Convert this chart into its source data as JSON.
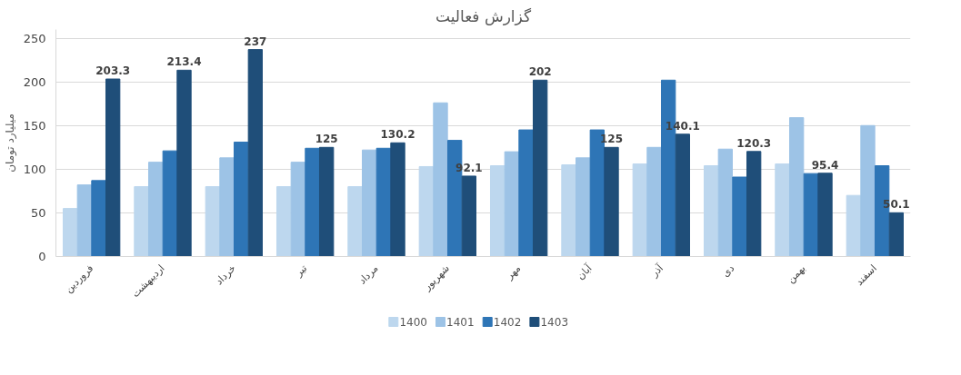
{
  "chart_data": {
    "type": "bar",
    "title": "گزارش فعالیت",
    "ylabel": "میلیارد تومان",
    "categories": [
      "فروردین",
      "اردیبهشت",
      "خرداد",
      "تیر",
      "مرداد",
      "شهریور",
      "مهر",
      "آبان",
      "آذر",
      "دی",
      "بهمن",
      "اسفند"
    ],
    "series": [
      {
        "name": "1400",
        "color": "#bdd7ee",
        "values": [
          55,
          80,
          80,
          80,
          80,
          103,
          104,
          105,
          106,
          104,
          106,
          70
        ]
      },
      {
        "name": "1401",
        "color": "#9dc3e6",
        "values": [
          82,
          108,
          113,
          108,
          122,
          176,
          120,
          113,
          125,
          123,
          159,
          150
        ]
      },
      {
        "name": "1402",
        "color": "#2e75b6",
        "values": [
          87,
          121,
          131,
          124,
          124,
          133,
          145,
          145,
          202,
          91,
          95,
          104
        ]
      },
      {
        "name": "1403",
        "color": "#1f4e79",
        "values": [
          203.3,
          213.4,
          237,
          125,
          130.2,
          92.1,
          202,
          125,
          140.1,
          120.3,
          95.4,
          50.1
        ],
        "value_labels": [
          "203.3",
          "213.4",
          "237",
          "125",
          "130.2",
          "92.1",
          "202",
          "125",
          "140.1",
          "120.3",
          "95.4",
          "50.1"
        ]
      }
    ],
    "ylim": [
      0,
      260
    ],
    "yticks": [
      0,
      50,
      100,
      150,
      200,
      250
    ],
    "grid": "y",
    "legend": "bottom"
  }
}
